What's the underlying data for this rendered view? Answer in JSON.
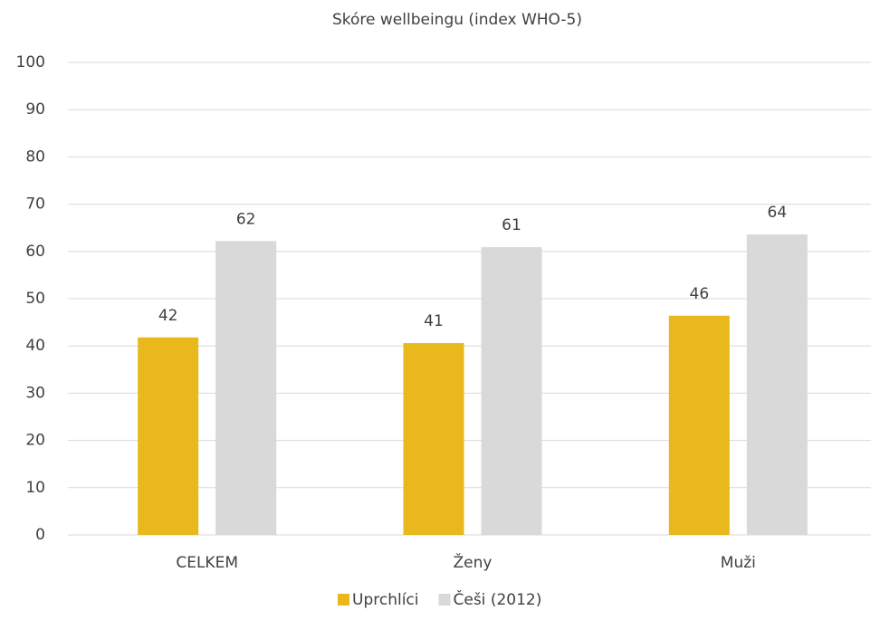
{
  "chart_data": {
    "type": "bar",
    "title": "Skóre wellbeingu (index WHO-5)",
    "categories": [
      "CELKEM",
      "Ženy",
      "Muži"
    ],
    "series": [
      {
        "name": "Uprchlíci",
        "color": "#e8b81c",
        "values": [
          41.8,
          40.6,
          46.4
        ],
        "value_labels": [
          "42",
          "41",
          "46"
        ]
      },
      {
        "name": "Češi (2012)",
        "color": "#d9d9d9",
        "values": [
          62.2,
          60.9,
          63.6
        ],
        "value_labels": [
          "62",
          "61",
          "64"
        ]
      }
    ],
    "ylim": [
      0,
      100
    ],
    "yticks": [
      0,
      10,
      20,
      30,
      40,
      50,
      60,
      70,
      80,
      90,
      100
    ],
    "grid": true,
    "legend": "bottom"
  }
}
